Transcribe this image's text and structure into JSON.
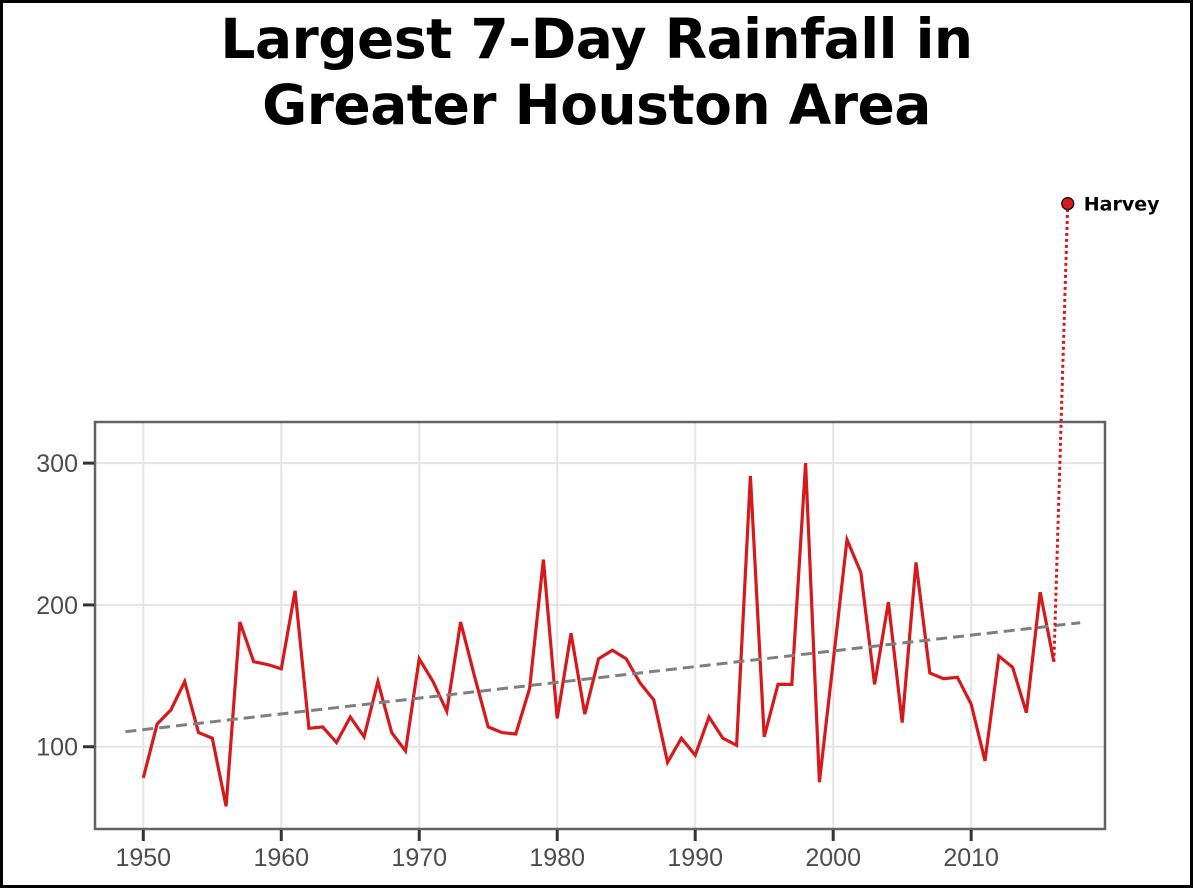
{
  "chart_data": {
    "type": "line",
    "title": [
      "Largest 7-Day Rainfall in",
      "Greater Houston Area"
    ],
    "xlabel": "",
    "ylabel": "",
    "xlim": [
      1946.5,
      2019.7
    ],
    "ylim": [
      42,
      329
    ],
    "x_ticks": [
      1950,
      1960,
      1970,
      1980,
      1990,
      2000,
      2010
    ],
    "y_ticks": [
      100,
      200,
      300
    ],
    "grid": true,
    "legend": "none",
    "series": [
      {
        "name": "Largest 7-day rainfall",
        "color": "#d7191c",
        "style": "solid",
        "x": [
          1950,
          1951,
          1952,
          1953,
          1954,
          1955,
          1956,
          1957,
          1958,
          1959,
          1960,
          1961,
          1962,
          1963,
          1964,
          1965,
          1966,
          1967,
          1968,
          1969,
          1970,
          1971,
          1972,
          1973,
          1974,
          1975,
          1976,
          1977,
          1978,
          1979,
          1980,
          1981,
          1982,
          1983,
          1984,
          1985,
          1986,
          1987,
          1988,
          1989,
          1990,
          1991,
          1992,
          1993,
          1994,
          1995,
          1996,
          1997,
          1998,
          1999,
          2000,
          2001,
          2002,
          2003,
          2004,
          2005,
          2006,
          2007,
          2008,
          2009,
          2010,
          2011,
          2012,
          2013,
          2014,
          2015,
          2016
        ],
        "values": [
          78,
          116,
          126,
          146,
          110,
          106,
          58,
          188,
          160,
          158,
          155,
          210,
          113,
          114,
          103,
          121,
          107,
          146,
          110,
          97,
          162,
          146,
          125,
          188,
          150,
          114,
          110,
          109,
          141,
          232,
          120,
          180,
          123,
          162,
          168,
          162,
          145,
          133,
          89,
          106,
          94,
          121,
          106,
          101,
          291,
          107,
          144,
          144,
          300,
          75,
          160,
          246,
          223,
          144,
          202,
          117,
          230,
          152,
          148,
          149,
          130,
          90,
          164,
          156,
          124,
          209,
          160
        ]
      },
      {
        "name": "Linear trend",
        "color": "#7f7f7f",
        "style": "dashed",
        "x": [
          1948.7,
          2017.9
        ],
        "values": [
          110.6,
          187.5
        ]
      },
      {
        "name": "Harvey connector",
        "color": "#d7191c",
        "style": "dotted",
        "x": [
          2016,
          2017
        ],
        "values": [
          160,
          483
        ]
      }
    ],
    "annotations": [
      {
        "label": "Harvey",
        "x": 2017,
        "y": 483,
        "marker": "circle",
        "color": "#d7191c"
      }
    ]
  }
}
